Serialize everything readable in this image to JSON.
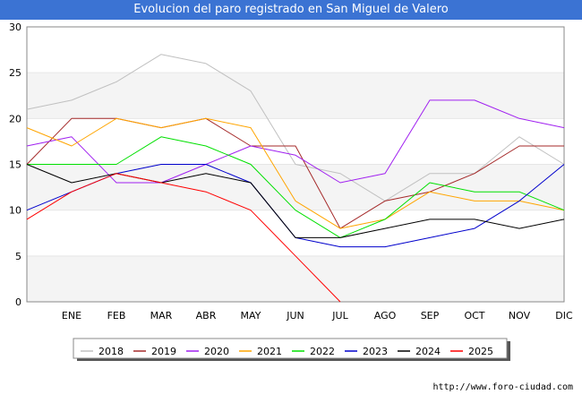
{
  "chart_data": {
    "type": "line",
    "title": "Evolucion del paro registrado en San Miguel de Valero",
    "categories": [
      "",
      "ENE",
      "FEB",
      "MAR",
      "ABR",
      "MAY",
      "JUN",
      "JUL",
      "AGO",
      "SEP",
      "OCT",
      "NOV",
      "DIC"
    ],
    "ylim": [
      0,
      30
    ],
    "yticks": [
      0,
      5,
      10,
      15,
      20,
      25,
      30
    ],
    "grid": true,
    "legend_position": "bottom",
    "series": [
      {
        "name": "2018",
        "color": "#c0c0c0",
        "values": [
          21,
          22,
          24,
          27,
          26,
          23,
          15,
          14,
          11,
          14,
          14,
          18,
          15
        ]
      },
      {
        "name": "2019",
        "color": "#a52a2a",
        "values": [
          15,
          20,
          20,
          19,
          20,
          17,
          17,
          8,
          11,
          12,
          14,
          17,
          17
        ]
      },
      {
        "name": "2020",
        "color": "#a020f0",
        "values": [
          17,
          18,
          13,
          13,
          15,
          17,
          16,
          13,
          14,
          22,
          22,
          20,
          19
        ]
      },
      {
        "name": "2021",
        "color": "#ffa500",
        "values": [
          19,
          17,
          20,
          19,
          20,
          19,
          11,
          8,
          9,
          12,
          11,
          11,
          10
        ]
      },
      {
        "name": "2022",
        "color": "#00e000",
        "values": [
          15,
          15,
          15,
          18,
          17,
          15,
          10,
          7,
          9,
          13,
          12,
          12,
          10
        ]
      },
      {
        "name": "2023",
        "color": "#0000cc",
        "values": [
          10,
          12,
          14,
          15,
          15,
          13,
          7,
          6,
          6,
          7,
          8,
          11,
          15
        ]
      },
      {
        "name": "2024",
        "color": "#000000",
        "values": [
          15,
          13,
          14,
          13,
          14,
          13,
          7,
          7,
          8,
          9,
          9,
          8,
          9
        ]
      },
      {
        "name": "2025",
        "color": "#ff0000",
        "values": [
          9,
          12,
          14,
          13,
          12,
          10,
          5,
          0,
          null,
          null,
          null,
          null,
          null
        ]
      }
    ]
  },
  "footer": {
    "url": "http://www.foro-ciudad.com"
  }
}
